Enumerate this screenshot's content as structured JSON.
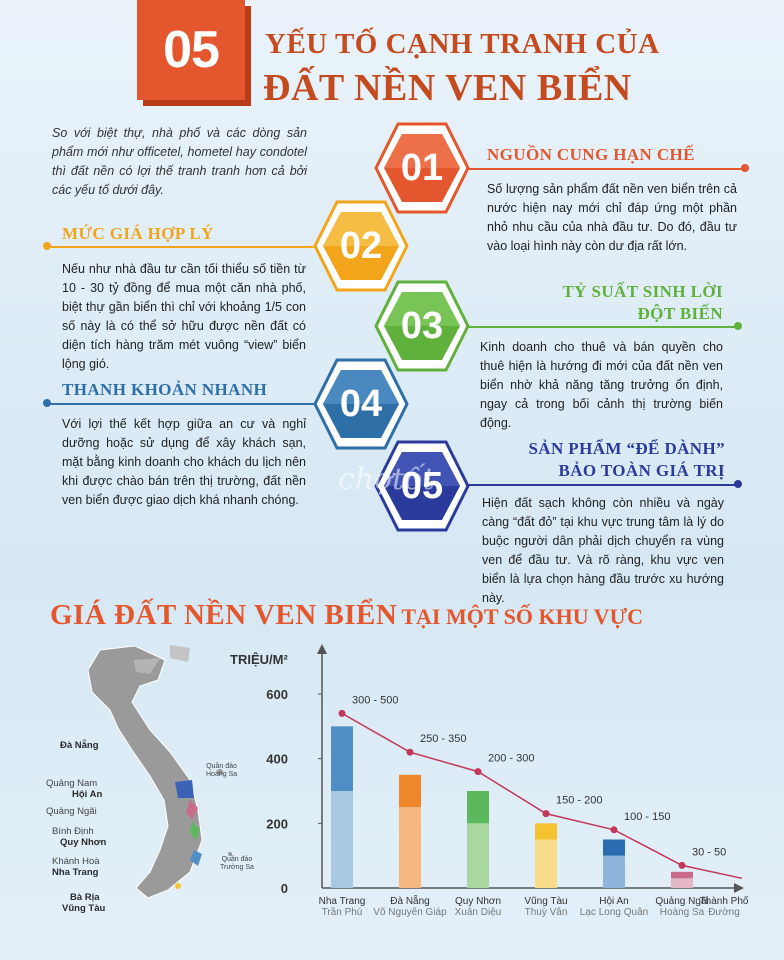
{
  "header": {
    "badge": "05",
    "title_line1": "YẾU TỐ CẠNH TRANH CỦA",
    "title_line2": "ĐẤT NỀN VEN BIỂN"
  },
  "intro": "So với biệt thự, nhà phố và các dòng sản phẩm mới như officetel, hometel hay condotel thì đất nền có lợi thế tranh tranh hơn cả bởi các yếu tố dưới đây.",
  "factors": [
    {
      "num": "01",
      "title": "NGUỒN CUNG HẠN CHẾ",
      "text": "Số lượng sản phẩm đất nền ven biển trên cả nước hiện nay mới chỉ đáp ứng một phần nhỏ nhu cầu của nhà đầu tư. Do đó, đầu tư vào loại hình này còn dư địa rất lớn.",
      "color": "#e4572e"
    },
    {
      "num": "02",
      "title": "MỨC GIÁ HỢP LÝ",
      "text": "Nếu như nhà đầu tư cần tối thiểu số tiền từ 10 - 30 tỷ đồng để mua một căn nhà phố, biệt thự gần biển thì chỉ với khoảng 1/5 con số này là có thể sở hữu được nền đất có diện tích hàng trăm mét vuông “view” biển lộng gió.",
      "color": "#f2a51a"
    },
    {
      "num": "03",
      "title_l1": "TỶ SUẤT SINH LỜI",
      "title_l2": "ĐỘT BIẾN",
      "text": "Kinh doanh cho thuê và bán quyền cho thuê hiện là hướng đi mới của đất nền ven biển nhờ khả năng tăng trưởng ổn định, ngay cả trong bối cảnh thị trường biến động.",
      "color": "#5fb13c"
    },
    {
      "num": "04",
      "title": "THANH KHOẢN NHANH",
      "text": "Với lợi thế kết hợp giữa an cư và nghỉ dưỡng hoặc sử dụng để xây khách sạn, mặt bằng kinh doanh cho khách du lịch nên khi được chào bán trên thị trường, đất nền ven biển được giao dịch khá nhanh chóng.",
      "color": "#2e6fa8"
    },
    {
      "num": "05",
      "title_l1": "SẢN PHẨM “ĐỂ DÀNH”",
      "title_l2": "BẢO TOÀN GIÁ TRỊ",
      "text": "Hiện đất sạch không còn nhiều và ngày càng “đất đỏ” tại khu vực trung tâm là lý do buộc người dân phải dịch chuyển ra vùng ven để đầu tư. Và rõ ràng, khu vực ven biển là lựa chọn hàng đầu trước xu hướng này.",
      "color": "#2a3b9c"
    }
  ],
  "watermark": "chợtốt",
  "price_section": {
    "title_big": "GIÁ ĐẤT NỀN VEN BIỂN",
    "title_small": "TẠI MỘT SỐ KHU VỰC"
  },
  "map": {
    "labels": [
      {
        "name": "Đà Nẵng",
        "bold": true
      },
      {
        "name": "Quảng Nam",
        "bold": false
      },
      {
        "name": "Hội An",
        "bold": true
      },
      {
        "name": "Quảng Ngãi",
        "bold": false
      },
      {
        "name": "Bình Định",
        "bold": false
      },
      {
        "name": "Quy Nhơn",
        "bold": true
      },
      {
        "name": "Khánh Hoà",
        "bold": false
      },
      {
        "name": "Nha Trang",
        "bold": true
      },
      {
        "name": "Bà Rịa",
        "bold": true
      },
      {
        "name": "Vũng Tàu",
        "bold": true
      }
    ],
    "islands": [
      "Quần đảo",
      "Hoàng Sa",
      "Quần đảo",
      "Trường Sa"
    ]
  },
  "chart_data": {
    "type": "bar",
    "ylabel": "TRIỆU/M²",
    "ylim": [
      0,
      700
    ],
    "yticks": [
      0,
      200,
      400,
      600
    ],
    "categories": [
      {
        "city": "Nha Trang",
        "street": "Trần Phú"
      },
      {
        "city": "Đà Nẵng",
        "street": "Võ Nguyên Giáp"
      },
      {
        "city": "Quy Nhơn",
        "street": "Xuân Diệu"
      },
      {
        "city": "Vũng Tàu",
        "street": "Thuỳ Vân"
      },
      {
        "city": "Hội An",
        "street": "Lạc Long Quân"
      },
      {
        "city": "Quảng Ngãi",
        "street": "Hoàng Sa"
      }
    ],
    "x_axis_end": {
      "l1": "Thành Phố",
      "l2": "Đường"
    },
    "range_low": [
      300,
      250,
      200,
      150,
      100,
      30
    ],
    "range_high": [
      500,
      350,
      300,
      200,
      150,
      50
    ],
    "range_labels": [
      "300 - 500",
      "250 - 350",
      "200 - 300",
      "150 - 200",
      "100 - 150",
      "30 - 50"
    ],
    "colors": [
      "#4f8fc6",
      "#f0862a",
      "#5cb85c",
      "#f5c330",
      "#2b6cb0",
      "#c96b8a"
    ],
    "light_colors": [
      "#a9c8e4",
      "#f6b87e",
      "#a8d8a0",
      "#f8dd8a",
      "#8fb4dc",
      "#e4b8c6"
    ],
    "trend_color": "#c2385a"
  }
}
